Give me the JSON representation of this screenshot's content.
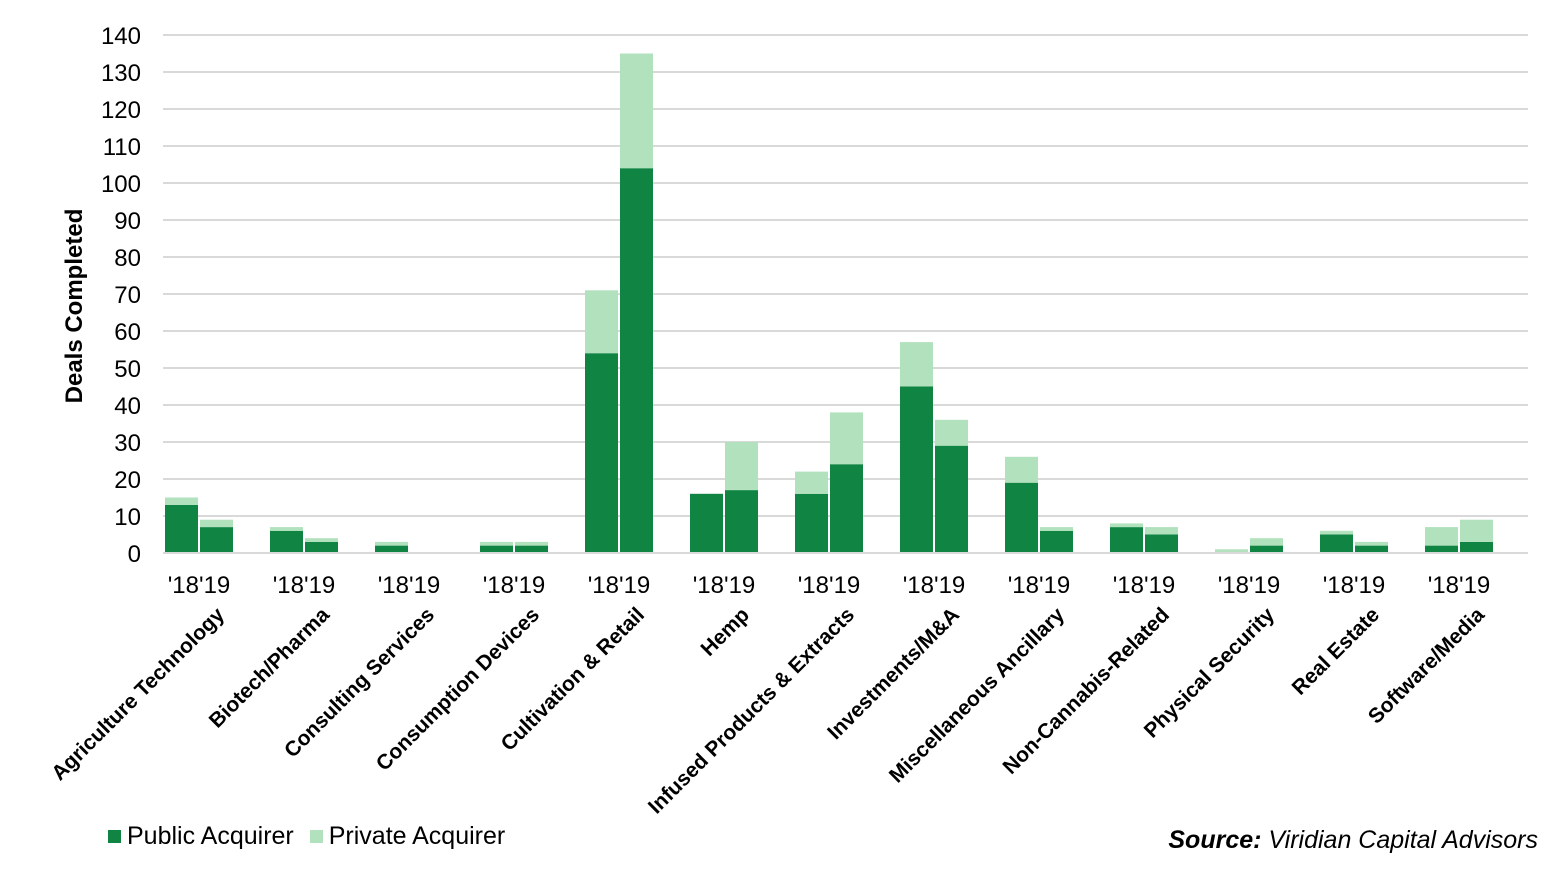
{
  "colors": {
    "public": "#108543",
    "private": "#b1e1bd",
    "grid": "#d9d9d9"
  },
  "legend": {
    "public": "Public Acquirer",
    "private": "Private Acquirer"
  },
  "source": {
    "label": "Source:",
    "text": "Viridian Capital Advisors"
  },
  "chart_data": {
    "type": "bar",
    "stacked": true,
    "ylabel": "Deals Completed",
    "ylim": [
      0,
      140
    ],
    "yticks": [
      0,
      10,
      20,
      30,
      40,
      50,
      60,
      70,
      80,
      90,
      100,
      110,
      120,
      130,
      140
    ],
    "grid": true,
    "legend_position": "bottom-left",
    "year_labels": [
      "'18",
      "'19"
    ],
    "categories": [
      "Agriculture Technology",
      "Biotech/Pharma",
      "Consulting Services",
      "Consumption Devices",
      "Cultivation & Retail",
      "Hemp",
      "Infused Products & Extracts",
      "Investments/M&A",
      "Miscellaneous Ancillary",
      "Non-Cannabis-Related",
      "Physical Security",
      "Real Estate",
      "Software/Media"
    ],
    "series": [
      {
        "name": "Public Acquirer",
        "values_2018": [
          13,
          6,
          2,
          2,
          54,
          16,
          16,
          45,
          19,
          7,
          0,
          5,
          2
        ],
        "values_2019": [
          7,
          3,
          0,
          2,
          104,
          17,
          24,
          29,
          6,
          5,
          2,
          2,
          3
        ]
      },
      {
        "name": "Private Acquirer",
        "values_2018": [
          2,
          1,
          1,
          1,
          17,
          0,
          6,
          12,
          7,
          1,
          1,
          1,
          5
        ],
        "values_2019": [
          2,
          1,
          0,
          1,
          31,
          13,
          14,
          7,
          1,
          2,
          2,
          1,
          6
        ]
      }
    ]
  }
}
